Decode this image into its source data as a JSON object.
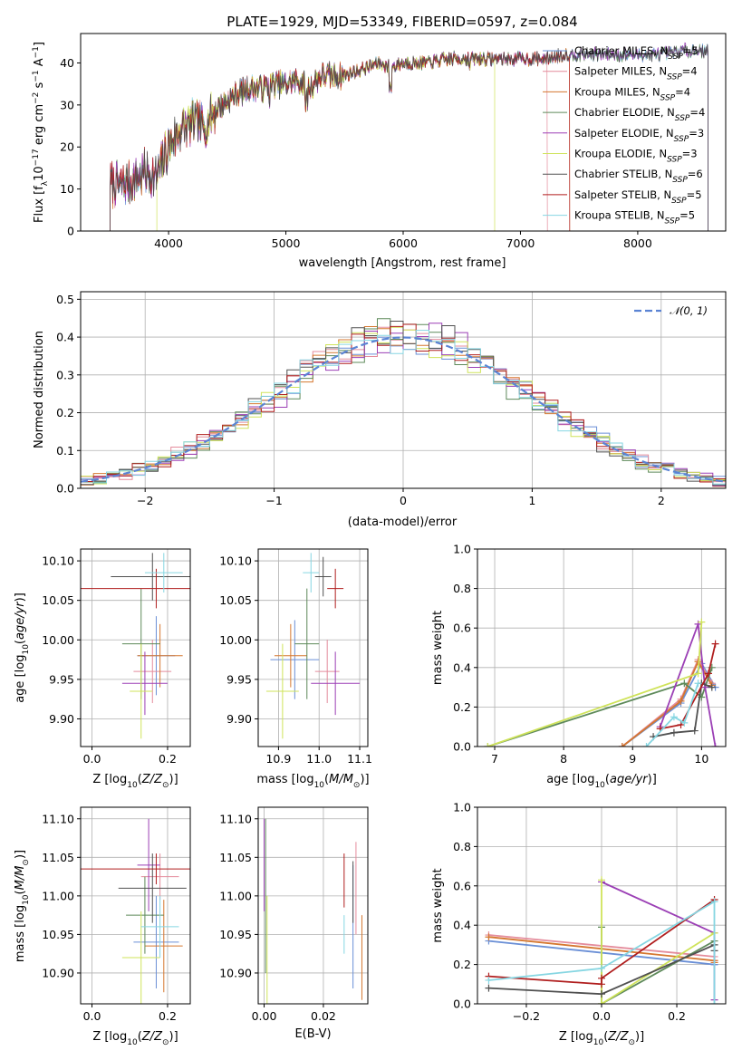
{
  "title": "PLATE=1929, MJD=53349, FIBERID=0597, z=0.084",
  "chart_data": [
    {
      "id": "spectrum",
      "type": "line",
      "xlabel": "wavelength [Angstrom, rest frame]",
      "ylabel": "Flux [f_λ10^-17 erg cm^-2 s^-1 A^-1]",
      "xlim": [
        3250,
        8750
      ],
      "ylim": [
        0,
        47
      ],
      "xticks": [
        "4000",
        "5000",
        "6000",
        "7000",
        "8000"
      ],
      "yticks": [
        "0",
        "10",
        "20",
        "30",
        "40"
      ],
      "legend_position": "upper-right",
      "series": [
        {
          "name": "Chabrier MILES, N_SSP=5",
          "color": "#6a8fd6"
        },
        {
          "name": "Salpeter MILES, N_SSP=4",
          "color": "#e48c9c"
        },
        {
          "name": "Kroupa MILES, N_SSP=4",
          "color": "#d5772f"
        },
        {
          "name": "Chabrier ELODIE, N_SSP=4",
          "color": "#5e8a5a"
        },
        {
          "name": "Salpeter ELODIE, N_SSP=3",
          "color": "#9b3fb5"
        },
        {
          "name": "Kroupa ELODIE, N_SSP=3",
          "color": "#cfe35a"
        },
        {
          "name": "Chabrier STELIB, N_SSP=6",
          "color": "#505050"
        },
        {
          "name": "Salpeter STELIB, N_SSP=5",
          "color": "#b01e1e"
        },
        {
          "name": "Kroupa STELIB, N_SSP=5",
          "color": "#86d6e2"
        }
      ],
      "continuum": {
        "x": [
          3500,
          3600,
          3700,
          3800,
          3900,
          4000,
          4100,
          4200,
          4300,
          4400,
          4500,
          4600,
          4700,
          4800,
          4900,
          5000,
          5100,
          5200,
          5300,
          5400,
          5500,
          5600,
          5700,
          5800,
          5900,
          6000,
          6200,
          6400,
          6600,
          6800,
          7000,
          7200,
          7400,
          7600,
          7800,
          8000,
          8200,
          8400,
          8600
        ],
        "y": [
          11,
          11,
          12,
          14,
          13,
          20,
          24,
          26,
          25,
          29,
          31,
          33,
          34,
          34,
          35,
          35,
          36,
          34,
          37,
          37,
          37,
          38,
          39,
          40,
          39,
          40,
          40,
          41,
          41,
          41,
          41,
          41,
          42,
          42,
          42,
          42,
          42,
          43,
          43
        ]
      }
    },
    {
      "id": "residuals",
      "type": "histogram",
      "xlabel": "(data-model)/error",
      "ylabel": "Normed distribution",
      "xlim": [
        -2.5,
        2.5
      ],
      "ylim": [
        0,
        0.52
      ],
      "xticks": [
        "−2",
        "−1",
        "0",
        "1",
        "2"
      ],
      "yticks": [
        "0.0",
        "0.1",
        "0.2",
        "0.3",
        "0.4",
        "0.5"
      ],
      "grid": true,
      "legend_position": "upper-right",
      "reference": {
        "name": "𝒩(0, 1)",
        "color": "#5b84d4",
        "style": "dashed"
      },
      "bin_width": 0.1
    },
    {
      "id": "age_vs_Z",
      "type": "errorbar",
      "xlabel": "Z [log10(Z/Z⊙)]",
      "ylabel": "age  [log10(age/yr)]",
      "xlim": [
        -0.03,
        0.26
      ],
      "ylim": [
        9.865,
        10.115
      ],
      "xticks": [
        "0.0",
        "0.2"
      ],
      "yticks": [
        "9.90",
        "9.95",
        "10.00",
        "10.05",
        "10.10"
      ],
      "grid": true,
      "points": [
        {
          "x": 0.17,
          "y": 9.98,
          "xerr": 0.05,
          "yerr": 0.05
        },
        {
          "x": 0.16,
          "y": 9.96,
          "xerr": 0.05,
          "yerr": 0.04
        },
        {
          "x": 0.18,
          "y": 9.98,
          "xerr": 0.06,
          "yerr": 0.04
        },
        {
          "x": 0.13,
          "y": 9.995,
          "xerr": 0.05,
          "yerr": 0.07
        },
        {
          "x": 0.14,
          "y": 9.945,
          "xerr": 0.06,
          "yerr": 0.04
        },
        {
          "x": 0.13,
          "y": 9.935,
          "xerr": 0.03,
          "yerr": 0.06
        },
        {
          "x": 0.16,
          "y": 10.08,
          "xerr": 0.11,
          "yerr": 0.03
        },
        {
          "x": 0.17,
          "y": 10.065,
          "xerr": 0.2,
          "yerr": 0.025
        },
        {
          "x": 0.19,
          "y": 10.085,
          "xerr": 0.05,
          "yerr": 0.025
        }
      ]
    },
    {
      "id": "age_vs_mass",
      "type": "errorbar",
      "xlabel": "mass [log10(M/M⊙)]",
      "ylabel": "",
      "xlim": [
        10.85,
        11.12
      ],
      "ylim": [
        9.865,
        10.115
      ],
      "xticks": [
        "10.9",
        "11.0",
        "11.1"
      ],
      "yticks": [
        "9.90",
        "9.95",
        "10.00",
        "10.05",
        "10.10"
      ],
      "grid": true,
      "points": [
        {
          "x": 10.94,
          "y": 9.975,
          "xerr": 0.06,
          "yerr": 0.05
        },
        {
          "x": 11.02,
          "y": 9.96,
          "xerr": 0.03,
          "yerr": 0.04
        },
        {
          "x": 10.93,
          "y": 9.98,
          "xerr": 0.04,
          "yerr": 0.04
        },
        {
          "x": 10.97,
          "y": 9.995,
          "xerr": 0.03,
          "yerr": 0.07
        },
        {
          "x": 11.04,
          "y": 9.945,
          "xerr": 0.06,
          "yerr": 0.04
        },
        {
          "x": 10.91,
          "y": 9.935,
          "xerr": 0.04,
          "yerr": 0.06
        },
        {
          "x": 11.01,
          "y": 10.08,
          "xerr": 0.02,
          "yerr": 0.025
        },
        {
          "x": 11.04,
          "y": 10.065,
          "xerr": 0.02,
          "yerr": 0.025
        },
        {
          "x": 10.98,
          "y": 10.085,
          "xerr": 0.02,
          "yerr": 0.025
        }
      ]
    },
    {
      "id": "weight_vs_age",
      "type": "line",
      "xlabel": "age  [log10(age/yr)]",
      "ylabel": "mass weight",
      "xlim": [
        6.75,
        10.35
      ],
      "ylim": [
        0,
        1
      ],
      "xticks": [
        "7",
        "8",
        "9",
        "10"
      ],
      "yticks": [
        "0.0",
        "0.2",
        "0.4",
        "0.6",
        "0.8",
        "1.0"
      ],
      "grid": true,
      "series_lines": [
        {
          "x": [
            8.85,
            9.7,
            10.0,
            10.2
          ],
          "y": [
            0.0,
            0.22,
            0.42,
            0.3
          ]
        },
        {
          "x": [
            8.85,
            9.7,
            9.95,
            10.15
          ],
          "y": [
            0.0,
            0.24,
            0.44,
            0.32
          ]
        },
        {
          "x": [
            8.85,
            9.7,
            9.95,
            10.15
          ],
          "y": [
            0.0,
            0.23,
            0.43,
            0.31
          ]
        },
        {
          "x": [
            6.9,
            9.75,
            10.0,
            10.15
          ],
          "y": [
            0.0,
            0.32,
            0.25,
            0.4
          ]
        },
        {
          "x": [
            9.4,
            9.95,
            10.05,
            10.2
          ],
          "y": [
            0.1,
            0.62,
            0.3,
            0.0
          ]
        },
        {
          "x": [
            6.9,
            9.95,
            10.0
          ],
          "y": [
            0.0,
            0.37,
            0.63
          ]
        },
        {
          "x": [
            9.3,
            9.6,
            9.9,
            10.0,
            10.15
          ],
          "y": [
            0.05,
            0.07,
            0.08,
            0.32,
            0.3
          ]
        },
        {
          "x": [
            9.4,
            9.7,
            10.1,
            10.2
          ],
          "y": [
            0.09,
            0.11,
            0.37,
            0.52
          ]
        },
        {
          "x": [
            9.2,
            9.6,
            9.75,
            9.95
          ],
          "y": [
            0.0,
            0.15,
            0.12,
            0.32
          ]
        }
      ]
    },
    {
      "id": "mass_vs_Z",
      "type": "errorbar",
      "xlabel": "Z [log10(Z/Z⊙)]",
      "ylabel": "mass [log10(M/M⊙)]",
      "xlim": [
        -0.03,
        0.26
      ],
      "ylim": [
        10.86,
        11.115
      ],
      "xticks": [
        "0.0",
        "0.2"
      ],
      "yticks": [
        "10.90",
        "10.95",
        "11.00",
        "11.05",
        "11.10"
      ],
      "grid": true,
      "points": [
        {
          "x": 0.17,
          "y": 10.94,
          "xerr": 0.06,
          "yerr": 0.06
        },
        {
          "x": 0.18,
          "y": 11.025,
          "xerr": 0.05,
          "yerr": 0.03
        },
        {
          "x": 0.19,
          "y": 10.935,
          "xerr": 0.05,
          "yerr": 0.06
        },
        {
          "x": 0.14,
          "y": 10.975,
          "xerr": 0.05,
          "yerr": 0.05
        },
        {
          "x": 0.15,
          "y": 11.04,
          "xerr": 0.03,
          "yerr": 0.06
        },
        {
          "x": 0.13,
          "y": 10.92,
          "xerr": 0.05,
          "yerr": 0.06
        },
        {
          "x": 0.16,
          "y": 11.01,
          "xerr": 0.09,
          "yerr": 0.045
        },
        {
          "x": 0.17,
          "y": 11.035,
          "xerr": 0.2,
          "yerr": 0.02
        },
        {
          "x": 0.18,
          "y": 10.96,
          "xerr": 0.05,
          "yerr": 0.04
        }
      ]
    },
    {
      "id": "mass_vs_ebv",
      "type": "errorbar",
      "xlabel": "E(B-V)",
      "ylabel": "",
      "xlim": [
        -0.002,
        0.035
      ],
      "ylim": [
        10.86,
        11.115
      ],
      "xticks": [
        "0.00",
        "0.02"
      ],
      "yticks": [
        "10.90",
        "10.95",
        "11.00",
        "11.05",
        "11.10"
      ],
      "grid": true,
      "points": [
        {
          "x": 0.03,
          "y": 10.96,
          "xerr": 0,
          "yerr": 0.08
        },
        {
          "x": 0.031,
          "y": 11.01,
          "xerr": 0,
          "yerr": 0.06
        },
        {
          "x": 0.033,
          "y": 10.92,
          "xerr": 0,
          "yerr": 0.055
        },
        {
          "x": 0.0005,
          "y": 11.0,
          "xerr": 0,
          "yerr": 0.1
        },
        {
          "x": 0.0,
          "y": 11.04,
          "xerr": 0,
          "yerr": 0.06
        },
        {
          "x": 0.001,
          "y": 10.93,
          "xerr": 0,
          "yerr": 0.07
        },
        {
          "x": 0.03,
          "y": 11.005,
          "xerr": 0,
          "yerr": 0.04
        },
        {
          "x": 0.027,
          "y": 11.02,
          "xerr": 0,
          "yerr": 0.035
        },
        {
          "x": 0.027,
          "y": 10.95,
          "xerr": 0,
          "yerr": 0.025
        }
      ]
    },
    {
      "id": "weight_vs_Z",
      "type": "line",
      "xlabel": "Z [log10(Z/Z⊙)]",
      "ylabel": "mass weight",
      "xlim": [
        -0.33,
        0.33
      ],
      "ylim": [
        0,
        1
      ],
      "xticks": [
        "−0.2",
        "0.0",
        "0.2"
      ],
      "yticks": [
        "0.0",
        "0.2",
        "0.4",
        "0.6",
        "0.8",
        "1.0"
      ],
      "grid": true,
      "series_lines": [
        {
          "x": [
            -0.3,
            0.3,
            0.3
          ],
          "y": [
            0.32,
            0.2,
            0.2
          ]
        },
        {
          "x": [
            -0.3,
            0.3,
            0.3
          ],
          "y": [
            0.35,
            0.24,
            0.22
          ]
        },
        {
          "x": [
            -0.3,
            0.3,
            0.3
          ],
          "y": [
            0.34,
            0.22,
            0.21
          ]
        },
        {
          "x": [
            0.0,
            0.0,
            0.3
          ],
          "y": [
            0.39,
            0.0,
            0.32
          ]
        },
        {
          "x": [
            0.0,
            0.3,
            0.3
          ],
          "y": [
            0.62,
            0.36,
            0.02
          ]
        },
        {
          "x": [
            0.0,
            0.0,
            0.3
          ],
          "y": [
            0.63,
            0.0,
            0.36
          ]
        },
        {
          "x": [
            -0.3,
            0.0,
            0.3,
            0.3
          ],
          "y": [
            0.08,
            0.05,
            0.3,
            0.27
          ]
        },
        {
          "x": [
            -0.3,
            0.0,
            0.0,
            0.3
          ],
          "y": [
            0.14,
            0.1,
            0.13,
            0.53
          ]
        },
        {
          "x": [
            -0.3,
            0.0,
            0.3,
            0.3
          ],
          "y": [
            0.12,
            0.18,
            0.52,
            0.0
          ]
        }
      ]
    }
  ]
}
